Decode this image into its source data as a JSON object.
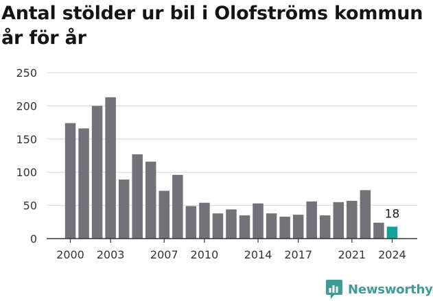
{
  "title": "Antal stölder ur bil i Olofströms kommun år för år",
  "brand": {
    "name": "Newsworthy",
    "icon": "newsworthy-logo-icon"
  },
  "colors": {
    "bar": "#737278",
    "highlight": "#11a398",
    "grid": "#d9d9d9",
    "axis": "#333333",
    "brand": "#3f9b95"
  },
  "chart_data": {
    "type": "bar",
    "title": "Antal stölder ur bil i Olofströms kommun år för år",
    "xlabel": "",
    "ylabel": "",
    "categories": [
      2000,
      2001,
      2002,
      2003,
      2004,
      2005,
      2006,
      2007,
      2008,
      2009,
      2010,
      2011,
      2012,
      2013,
      2014,
      2015,
      2016,
      2017,
      2018,
      2019,
      2020,
      2021,
      2022,
      2023,
      2024
    ],
    "values": [
      174,
      166,
      200,
      213,
      89,
      127,
      116,
      72,
      96,
      49,
      54,
      38,
      44,
      35,
      53,
      38,
      33,
      36,
      56,
      35,
      55,
      57,
      73,
      24,
      18
    ],
    "highlight_index": 24,
    "data_labels": [
      {
        "index": 24,
        "text": "18"
      }
    ],
    "ylim": [
      0,
      250
    ],
    "yticks": [
      0,
      50,
      100,
      150,
      200,
      250
    ],
    "xticks": [
      2000,
      2003,
      2007,
      2010,
      2014,
      2017,
      2021,
      2024
    ],
    "grid": true,
    "legend": "none"
  }
}
